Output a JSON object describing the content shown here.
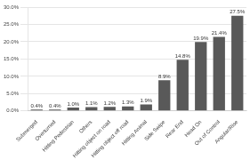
{
  "chart_data": {
    "type": "bar",
    "categories": [
      "Submerged",
      "Overturned",
      "Hitting Pedestrian",
      "Others",
      "Hitting object on road",
      "Hitting object off road",
      "Hitting Animal",
      "Side Swipe",
      "Rear End",
      "Head On",
      "Out of Control",
      "Angular/Rise"
    ],
    "values": [
      0.4,
      0.4,
      1.0,
      1.1,
      1.2,
      1.3,
      1.9,
      8.9,
      14.8,
      19.9,
      21.4,
      27.5
    ],
    "value_labels": [
      "0.4%",
      "0.4%",
      "1.0%",
      "1.1%",
      "1.2%",
      "1.3%",
      "1.9%",
      "8.9%",
      "14.8%",
      "19.9%",
      "21.4%",
      "27.5%"
    ],
    "color": "#595959",
    "ylim": [
      0,
      30
    ],
    "yticks": [
      {
        "value": 0,
        "label": "0.0%"
      },
      {
        "value": 5,
        "label": "5.0%"
      },
      {
        "value": 10,
        "label": "10.0%"
      },
      {
        "value": 15,
        "label": "15.0%"
      },
      {
        "value": 20,
        "label": "20.0%"
      },
      {
        "value": 25,
        "label": "25.0%"
      },
      {
        "value": 30,
        "label": "30.0%"
      }
    ],
    "grid": true,
    "data_labels": true
  }
}
